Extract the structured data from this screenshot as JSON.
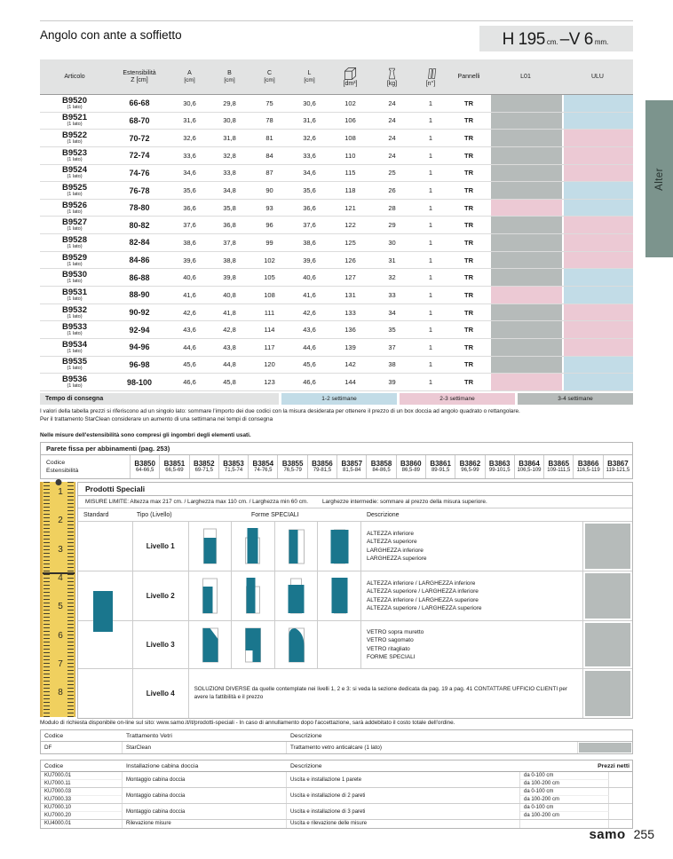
{
  "page": {
    "title": "Angolo con ante a soffietto",
    "side_tab": "Alter"
  },
  "spec": {
    "h": "H 195",
    "cm": "cm.",
    "dash": "–",
    "v": "V 6",
    "mm": "mm."
  },
  "colors": {
    "gray": "#b6bbba",
    "blue": "#c2dce7",
    "pink": "#ecc9d4",
    "teal": "#1a768d",
    "alter": "#7c948d",
    "ruler": "#f0d05f"
  },
  "main_table": {
    "headers": {
      "articolo": "Articolo",
      "est1": "Estensibilità",
      "est2": "Z [cm]",
      "a": "A",
      "b": "B",
      "c": "C",
      "l": "L",
      "unit": "[cm]",
      "dm3": "[dm³]",
      "kg": "[kg]",
      "n": "[n°]",
      "pannelli": "Pannelli",
      "l01": "L01",
      "ulu": "ULU"
    },
    "rows": [
      {
        "code": "B9520",
        "sub": "(1 lato)",
        "est": "66-68",
        "a": "30,6",
        "b": "29,8",
        "c": "75",
        "l": "30,6",
        "dm3": "102",
        "kg": "24",
        "n": "1",
        "pan": "TR",
        "l01": "gray",
        "ulu": "blue"
      },
      {
        "code": "B9521",
        "sub": "(1 lato)",
        "est": "68-70",
        "a": "31,6",
        "b": "30,8",
        "c": "78",
        "l": "31,6",
        "dm3": "106",
        "kg": "24",
        "n": "1",
        "pan": "TR",
        "l01": "gray",
        "ulu": "blue"
      },
      {
        "code": "B9522",
        "sub": "(1 lato)",
        "est": "70-72",
        "a": "32,6",
        "b": "31,8",
        "c": "81",
        "l": "32,6",
        "dm3": "108",
        "kg": "24",
        "n": "1",
        "pan": "TR",
        "l01": "gray",
        "ulu": "pink"
      },
      {
        "code": "B9523",
        "sub": "(1 lato)",
        "est": "72-74",
        "a": "33,6",
        "b": "32,8",
        "c": "84",
        "l": "33,6",
        "dm3": "110",
        "kg": "24",
        "n": "1",
        "pan": "TR",
        "l01": "gray",
        "ulu": "pink"
      },
      {
        "code": "B9524",
        "sub": "(1 lato)",
        "est": "74-76",
        "a": "34,6",
        "b": "33,8",
        "c": "87",
        "l": "34,6",
        "dm3": "115",
        "kg": "25",
        "n": "1",
        "pan": "TR",
        "l01": "gray",
        "ulu": "pink"
      },
      {
        "code": "B9525",
        "sub": "(1 lato)",
        "est": "76-78",
        "a": "35,6",
        "b": "34,8",
        "c": "90",
        "l": "35,6",
        "dm3": "118",
        "kg": "26",
        "n": "1",
        "pan": "TR",
        "l01": "gray",
        "ulu": "blue"
      },
      {
        "code": "B9526",
        "sub": "(1 lato)",
        "est": "78-80",
        "a": "36,6",
        "b": "35,8",
        "c": "93",
        "l": "36,6",
        "dm3": "121",
        "kg": "28",
        "n": "1",
        "pan": "TR",
        "l01": "pink",
        "ulu": "blue"
      },
      {
        "code": "B9527",
        "sub": "(1 lato)",
        "est": "80-82",
        "a": "37,6",
        "b": "36,8",
        "c": "96",
        "l": "37,6",
        "dm3": "122",
        "kg": "29",
        "n": "1",
        "pan": "TR",
        "l01": "gray",
        "ulu": "pink"
      },
      {
        "code": "B9528",
        "sub": "(1 lato)",
        "est": "82-84",
        "a": "38,6",
        "b": "37,8",
        "c": "99",
        "l": "38,6",
        "dm3": "125",
        "kg": "30",
        "n": "1",
        "pan": "TR",
        "l01": "gray",
        "ulu": "pink"
      },
      {
        "code": "B9529",
        "sub": "(1 lato)",
        "est": "84-86",
        "a": "39,6",
        "b": "38,8",
        "c": "102",
        "l": "39,6",
        "dm3": "126",
        "kg": "31",
        "n": "1",
        "pan": "TR",
        "l01": "gray",
        "ulu": "pink"
      },
      {
        "code": "B9530",
        "sub": "(1 lato)",
        "est": "86-88",
        "a": "40,6",
        "b": "39,8",
        "c": "105",
        "l": "40,6",
        "dm3": "127",
        "kg": "32",
        "n": "1",
        "pan": "TR",
        "l01": "gray",
        "ulu": "blue"
      },
      {
        "code": "B9531",
        "sub": "(1 lato)",
        "est": "88-90",
        "a": "41,6",
        "b": "40,8",
        "c": "108",
        "l": "41,6",
        "dm3": "131",
        "kg": "33",
        "n": "1",
        "pan": "TR",
        "l01": "pink",
        "ulu": "blue"
      },
      {
        "code": "B9532",
        "sub": "(1 lato)",
        "est": "90-92",
        "a": "42,6",
        "b": "41,8",
        "c": "111",
        "l": "42,6",
        "dm3": "133",
        "kg": "34",
        "n": "1",
        "pan": "TR",
        "l01": "gray",
        "ulu": "pink"
      },
      {
        "code": "B9533",
        "sub": "(1 lato)",
        "est": "92-94",
        "a": "43,6",
        "b": "42,8",
        "c": "114",
        "l": "43,6",
        "dm3": "136",
        "kg": "35",
        "n": "1",
        "pan": "TR",
        "l01": "gray",
        "ulu": "pink"
      },
      {
        "code": "B9534",
        "sub": "(1 lato)",
        "est": "94-96",
        "a": "44,6",
        "b": "43,8",
        "c": "117",
        "l": "44,6",
        "dm3": "139",
        "kg": "37",
        "n": "1",
        "pan": "TR",
        "l01": "gray",
        "ulu": "pink"
      },
      {
        "code": "B9535",
        "sub": "(1 lato)",
        "est": "96-98",
        "a": "45,6",
        "b": "44,8",
        "c": "120",
        "l": "45,6",
        "dm3": "142",
        "kg": "38",
        "n": "1",
        "pan": "TR",
        "l01": "gray",
        "ulu": "blue"
      },
      {
        "code": "B9536",
        "sub": "(1 lato)",
        "est": "98-100",
        "a": "46,6",
        "b": "45,8",
        "c": "123",
        "l": "46,6",
        "dm3": "144",
        "kg": "39",
        "n": "1",
        "pan": "TR",
        "l01": "pink",
        "ulu": "blue"
      }
    ]
  },
  "delivery": {
    "label": "Tempo di consegna",
    "legend": [
      {
        "label": "1-2 settimane",
        "color": "blue"
      },
      {
        "label": "2-3 settimane",
        "color": "pink"
      },
      {
        "label": "3-4 settimane",
        "color": "gray"
      }
    ]
  },
  "notes": {
    "line1": "I valori della tabella prezzi si riferiscono ad un singolo lato: sommare l'importo dei due codici con la misura desiderata per ottenere il prezzo di un box doccia ad angolo quadrato o rettangolare.",
    "line2": "Per il trattamento StarClean considerare un aumento di una settimana nei tempi di consegna",
    "line3": "Nelle misure dell'estensibilità sono compresi gli ingombri degli elementi usati."
  },
  "parete": {
    "title": "Parete fissa per abbinamenti (pag. 253)",
    "label1": "Codice",
    "label2": "Estensibilità",
    "items": [
      {
        "code": "B3850",
        "range": "64-66,5"
      },
      {
        "code": "B3851",
        "range": "66,5-69"
      },
      {
        "code": "B3852",
        "range": "69-71,5"
      },
      {
        "code": "B3853",
        "range": "71,5-74"
      },
      {
        "code": "B3854",
        "range": "74-76,5"
      },
      {
        "code": "B3855",
        "range": "76,5-79"
      },
      {
        "code": "B3856",
        "range": "79-81,5"
      },
      {
        "code": "B3857",
        "range": "81,5-84"
      },
      {
        "code": "B3858",
        "range": "84-86,5"
      },
      {
        "code": "B3860",
        "range": "86,5-89"
      },
      {
        "code": "B3861",
        "range": "89-91,5"
      },
      {
        "code": "B3862",
        "range": "96,5-99"
      },
      {
        "code": "B3863",
        "range": "99-101,5"
      },
      {
        "code": "B3864",
        "range": "106,5-109"
      },
      {
        "code": "B3865",
        "range": "109-111,5"
      },
      {
        "code": "B3866",
        "range": "116,5-119"
      },
      {
        "code": "B3867",
        "range": "119-121,5"
      }
    ]
  },
  "prodotti": {
    "title": "Prodotti Speciali",
    "misure": "MISURE LIMITE: Altezza max 217 cm. / Larghezza max 110 cm. / Larghezza min 60 cm.",
    "misure2": "Larghezze intermedie: sommare al prezzo della misura superiore.",
    "headers": {
      "standard": "Standard",
      "tipo": "Tipo (Livello)",
      "forme": "Forme SPECIALI",
      "descr": "Descrizione"
    },
    "livelli": [
      {
        "label": "Livello 1",
        "shapes": [
          "alt-inf",
          "alt-sup",
          "larg-inf",
          "larg-sup"
        ],
        "desc": [
          "ALTEZZA inferiore",
          "ALTEZZA superiore",
          "LARGHEZZA inferiore",
          "LARGHEZZA superiore"
        ]
      },
      {
        "label": "Livello 2",
        "shapes": [
          "ai-li",
          "as-li",
          "ai-ls",
          "as-ls"
        ],
        "desc": [
          "ALTEZZA inferiore / LARGHEZZA inferiore",
          "ALTEZZA superiore / LARGHEZZA inferiore",
          "ALTEZZA inferiore / LARGHEZZA superiore",
          "ALTEZZA superiore / LARGHEZZA superiore"
        ]
      },
      {
        "label": "Livello 3",
        "shapes": [
          "muretto",
          "ritaglio",
          "curva"
        ],
        "desc": [
          "VETRO sopra muretto",
          "VETRO sagomato",
          "VETRO ritagliato",
          "FORME SPECIALI"
        ]
      },
      {
        "label": "Livello 4",
        "text": "SOLUZIONI DIVERSE da quelle contemplate nei livelli 1, 2 e 3: si veda la sezione dedicata da pag. 19 a pag. 41 CONTATTARE UFFICIO CLIENTI per avere la fattibilità e il prezzo"
      }
    ],
    "ruler_numbers": [
      "1",
      "2",
      "3",
      "4",
      "5",
      "6",
      "7",
      "8"
    ],
    "modulo": "Modulo di richiesta disponibile on-line sul sito: www.samo.it/it/prodotti-speciali - In caso di annullamento dopo l'accettazione, sarà addebitato il costo totale dell'ordine."
  },
  "vetri": {
    "h_codice": "Codice",
    "h_tratt": "Trattamento Vetri",
    "h_descr": "Descrizione",
    "row": {
      "code": "DF",
      "name": "StarClean",
      "desc": "Trattamento vetro anticalcare (1 lato)"
    }
  },
  "install": {
    "h_codice": "Codice",
    "h_install": "Installazione cabina doccia",
    "h_descr": "Descrizione",
    "h_prezzi": "Prezzi netti",
    "groups": [
      {
        "codes": [
          "KU7000.01",
          "KU7000.11"
        ],
        "name": "Montaggio cabina doccia",
        "desc": "Uscita e installazione 1 parete",
        "ranges": [
          "da 0-100 cm",
          "da 100-200 cm"
        ]
      },
      {
        "codes": [
          "KU7000.03",
          "KU7000.33"
        ],
        "name": "Montaggio cabina doccia",
        "desc": "Uscita e installazione di 2 pareti",
        "ranges": [
          "da 0-100 cm",
          "da 100-200 cm"
        ]
      },
      {
        "codes": [
          "KU7000.10",
          "KU7000.20"
        ],
        "name": "Montaggio cabina doccia",
        "desc": "Uscita e installazione di 3 pareti",
        "ranges": [
          "da 0-100 cm",
          "da 100-200 cm"
        ]
      },
      {
        "codes": [
          "KU4000.01"
        ],
        "name": "Rilevazione misure",
        "desc": "Uscita e rilevazione delle misure",
        "ranges": [
          ""
        ]
      }
    ]
  },
  "footer": {
    "brand": "samo",
    "page": "255"
  }
}
